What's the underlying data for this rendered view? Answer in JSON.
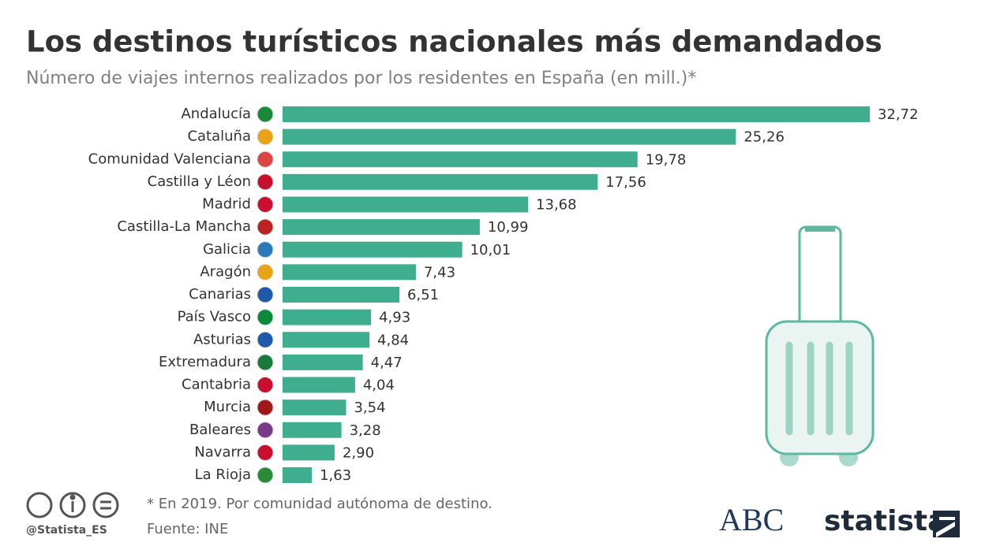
{
  "chart_data": {
    "type": "bar",
    "orientation": "horizontal",
    "title": "Los destinos turísticos nacionales más demandados",
    "subtitle": "Número de viajes internos realizados por los residentes en España (en mill.)*",
    "categories": [
      "Andalucía",
      "Cataluña",
      "Comunidad Valenciana",
      "Castilla y Léon",
      "Madrid",
      "Castilla-La Mancha",
      "Galicia",
      "Aragón",
      "Canarias",
      "País Vasco",
      "Asturias",
      "Extremadura",
      "Cantabria",
      "Murcia",
      "Baleares",
      "Navarra",
      "La Rioja"
    ],
    "values": [
      32.72,
      25.26,
      19.78,
      17.56,
      13.68,
      10.99,
      10.01,
      7.43,
      6.51,
      4.93,
      4.84,
      4.47,
      4.04,
      3.54,
      3.28,
      2.9,
      1.63
    ],
    "value_labels": [
      "32,72",
      "25,26",
      "19,78",
      "17,56",
      "13,68",
      "10,99",
      "10,01",
      "7,43",
      "6,51",
      "4,93",
      "4,84",
      "4,47",
      "4,04",
      "3,54",
      "3,28",
      "2,90",
      "1,63"
    ],
    "color": "#3fae8f",
    "footnote": "* En 2019. Por comunidad autónoma de destino.",
    "source": "Fuente: INE",
    "credit": "@Statista_ES",
    "logos": [
      "ABC",
      "statista"
    ]
  }
}
